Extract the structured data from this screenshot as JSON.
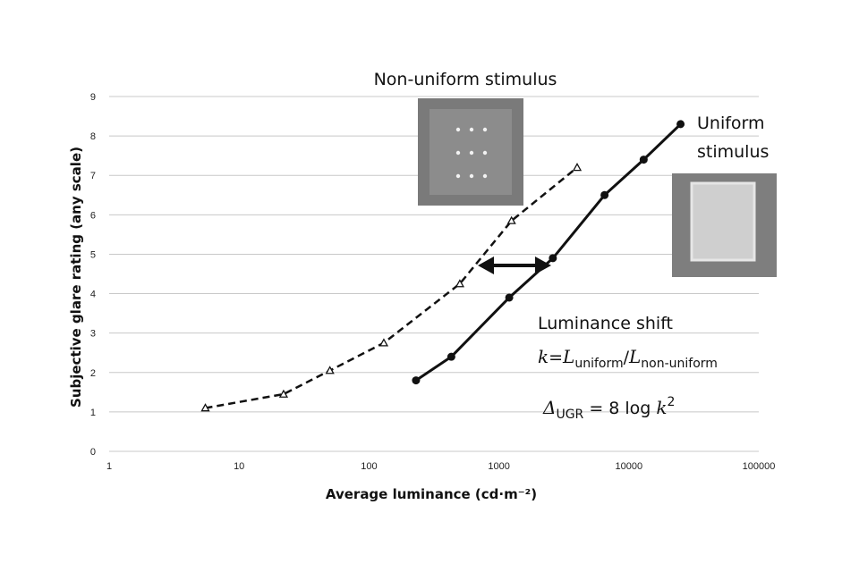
{
  "chart_data": {
    "type": "line",
    "title": "",
    "xlabel": "Average luminance (cd·m⁻²)",
    "ylabel": "Subjective glare rating (any scale)",
    "x_scale": "log",
    "xlim": [
      1,
      100000
    ],
    "ylim": [
      0,
      9
    ],
    "x_ticks": [
      "1",
      "10",
      "100",
      "1000",
      "10000",
      "100000"
    ],
    "y_ticks": [
      "0",
      "1",
      "2",
      "3",
      "4",
      "5",
      "6",
      "7",
      "8",
      "9"
    ],
    "grid": "horizontal",
    "series": [
      {
        "style": "dashed",
        "marker": "triangle-open",
        "x": [
          5.5,
          22,
          50,
          130,
          500,
          1250,
          4000
        ],
        "y": [
          1.1,
          1.45,
          2.05,
          2.75,
          4.25,
          5.85,
          7.2
        ]
      },
      {
        "style": "solid",
        "marker": "circle-filled",
        "x": [
          230,
          430,
          1200,
          2600,
          6500,
          13000,
          25000
        ],
        "y": [
          1.8,
          2.4,
          3.9,
          4.9,
          6.5,
          7.4,
          8.3
        ]
      }
    ],
    "annotations": {
      "non_uniform": "Non-uniform stimulus",
      "uniform_line1": "Uniform",
      "uniform_line2": "stimulus",
      "shift_title": "Luminance shift",
      "formula1_k": "k",
      "formula1_eq": "=",
      "formula1_L1": "L",
      "formula1_sub1": "uniform",
      "formula1_slash": "/",
      "formula1_L2": "L",
      "formula1_sub2": "non-uniform",
      "formula2_delta": "Δ",
      "formula2_sub": "UGR",
      "formula2_eq": " = 8 log ",
      "formula2_k": "k",
      "formula2_sup": "2"
    }
  }
}
